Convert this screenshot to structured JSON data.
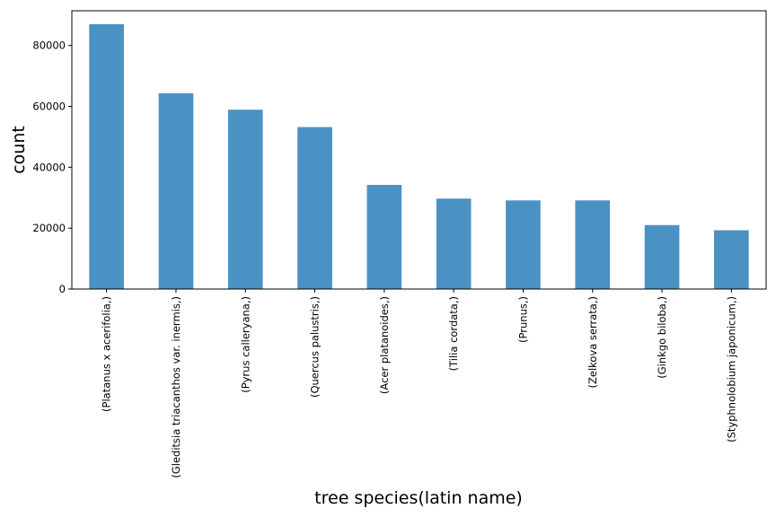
{
  "chart_data": {
    "type": "bar",
    "title": "",
    "xlabel": "tree species(latin name)",
    "ylabel": "count",
    "categories": [
      "(Platanus x acerifolia,)",
      "(Gleditsia triacanthos var. inermis,)",
      "(Pyrus calleryana,)",
      "(Quercus palustris,)",
      "(Acer platanoides,)",
      "(Tilia cordata,)",
      "(Prunus,)",
      "(Zelkova serrata,)",
      "(Ginkgo biloba,)",
      "(Styphnolobium japonicum,)"
    ],
    "values": [
      87000,
      64300,
      58900,
      53200,
      34200,
      29700,
      29100,
      29100,
      21000,
      19300
    ],
    "ylim": [
      0,
      91400
    ],
    "yticks": [
      0,
      20000,
      40000,
      60000,
      80000
    ],
    "bar_color": "#4a92c4",
    "grid": false,
    "legend": "none"
  }
}
